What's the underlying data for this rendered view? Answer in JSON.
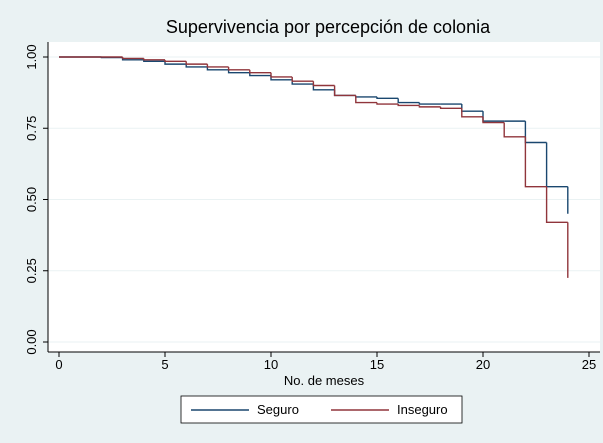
{
  "chart_data": {
    "type": "step",
    "title": "Supervivencia por percepción de colonia",
    "x_label": "No. de meses",
    "x": [
      0,
      2,
      3,
      4,
      5,
      6,
      7,
      8,
      9,
      10,
      11,
      12,
      13,
      14,
      15,
      16,
      17,
      18,
      19,
      20,
      21,
      22,
      23,
      24
    ],
    "series": [
      {
        "name": "Seguro",
        "color": "#1a476f",
        "values": [
          1.0,
          0.998,
          0.99,
          0.985,
          0.975,
          0.965,
          0.955,
          0.945,
          0.935,
          0.92,
          0.905,
          0.885,
          0.865,
          0.86,
          0.855,
          0.84,
          0.835,
          0.835,
          0.81,
          0.775,
          0.775,
          0.7,
          0.545,
          0.45
        ]
      },
      {
        "name": "Inseguro",
        "color": "#90353b",
        "values": [
          1.0,
          1.0,
          0.995,
          0.99,
          0.985,
          0.975,
          0.965,
          0.955,
          0.945,
          0.93,
          0.915,
          0.9,
          0.865,
          0.84,
          0.835,
          0.83,
          0.825,
          0.82,
          0.79,
          0.77,
          0.72,
          0.545,
          0.42,
          0.225
        ]
      }
    ],
    "xlim": [
      0,
      25
    ],
    "xticks": [
      0,
      5,
      10,
      15,
      20,
      25
    ],
    "ylim": [
      0,
      1
    ],
    "yticks": [
      {
        "value": 0,
        "label": "0.00"
      },
      {
        "value": 0.25,
        "label": "0.25"
      },
      {
        "value": 0.5,
        "label": "0.50"
      },
      {
        "value": 0.75,
        "label": "0.75"
      },
      {
        "value": 1,
        "label": "1.00"
      }
    ],
    "grid": true,
    "legend": "bottom"
  }
}
